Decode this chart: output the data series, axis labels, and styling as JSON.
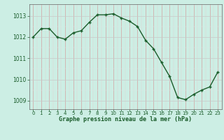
{
  "x": [
    0,
    1,
    2,
    3,
    4,
    5,
    6,
    7,
    8,
    9,
    10,
    11,
    12,
    13,
    14,
    15,
    16,
    17,
    18,
    19,
    20,
    21,
    22,
    23
  ],
  "y": [
    1012.0,
    1012.4,
    1012.4,
    1012.0,
    1011.9,
    1012.2,
    1012.3,
    1012.7,
    1013.05,
    1013.05,
    1013.1,
    1012.9,
    1012.75,
    1012.5,
    1011.85,
    1011.45,
    1010.8,
    1010.15,
    1009.15,
    1009.05,
    1009.3,
    1009.5,
    1009.65,
    1010.35
  ],
  "bg_color": "#cceee4",
  "line_color": "#1a5c2a",
  "marker_color": "#1a5c2a",
  "xlabel": "Graphe pression niveau de la mer (hPa)",
  "xlabel_color": "#1a5c2a",
  "ylim_min": 1008.6,
  "ylim_max": 1013.55,
  "yticks": [
    1009,
    1010,
    1011,
    1012,
    1013
  ],
  "xticks": [
    0,
    1,
    2,
    3,
    4,
    5,
    6,
    7,
    8,
    9,
    10,
    11,
    12,
    13,
    14,
    15,
    16,
    17,
    18,
    19,
    20,
    21,
    22,
    23
  ],
  "marker_size": 3.0,
  "line_width": 1.0
}
